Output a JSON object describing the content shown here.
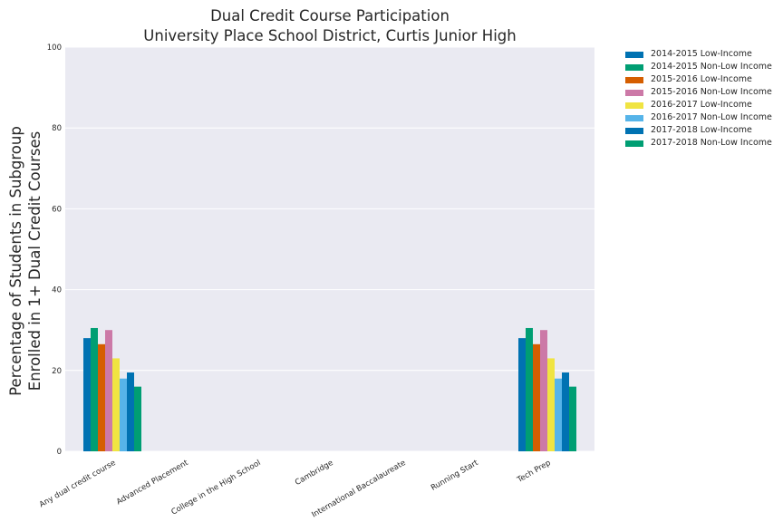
{
  "chart_data": {
    "type": "bar",
    "title": "Dual Credit Course Participation",
    "subtitle": "University Place School District, Curtis Junior High",
    "ylabel_line1": "Percentage of Students in Subgroup",
    "ylabel_line2": "Enrolled in 1+ Dual Credit Courses",
    "xlabel": "",
    "ylim": [
      0,
      100
    ],
    "yticks": [
      "0",
      "20",
      "40",
      "60",
      "80",
      "100"
    ],
    "grid": true,
    "legend_position": "outside-top-right",
    "categories": [
      "Any dual credit course",
      "Advanced Placement",
      "College in the High School",
      "Cambridge",
      "International Baccalaureate",
      "Running Start",
      "Tech Prep"
    ],
    "series": [
      {
        "name": "2014-2015 Low-Income",
        "color": "#0072b2",
        "values": [
          28,
          null,
          null,
          null,
          null,
          null,
          28
        ]
      },
      {
        "name": "2014-2015 Non-Low Income",
        "color": "#009e73",
        "values": [
          30.5,
          null,
          null,
          null,
          null,
          null,
          30.5
        ]
      },
      {
        "name": "2015-2016 Low-Income",
        "color": "#d55e00",
        "values": [
          26.5,
          null,
          null,
          null,
          null,
          null,
          26.5
        ]
      },
      {
        "name": "2015-2016 Non-Low Income",
        "color": "#cc79a7",
        "values": [
          30,
          null,
          null,
          null,
          null,
          null,
          30
        ]
      },
      {
        "name": "2016-2017 Low-Income",
        "color": "#f0e442",
        "values": [
          23,
          null,
          null,
          null,
          null,
          null,
          23
        ]
      },
      {
        "name": "2016-2017 Non-Low Income",
        "color": "#56b4e9",
        "values": [
          18,
          null,
          null,
          null,
          null,
          null,
          18
        ]
      },
      {
        "name": "2017-2018 Low-Income",
        "color": "#0072b2",
        "values": [
          19.5,
          null,
          null,
          null,
          null,
          null,
          19.5
        ]
      },
      {
        "name": "2017-2018 Non-Low Income",
        "color": "#009e73",
        "values": [
          16,
          null,
          null,
          null,
          null,
          null,
          16
        ]
      }
    ]
  }
}
